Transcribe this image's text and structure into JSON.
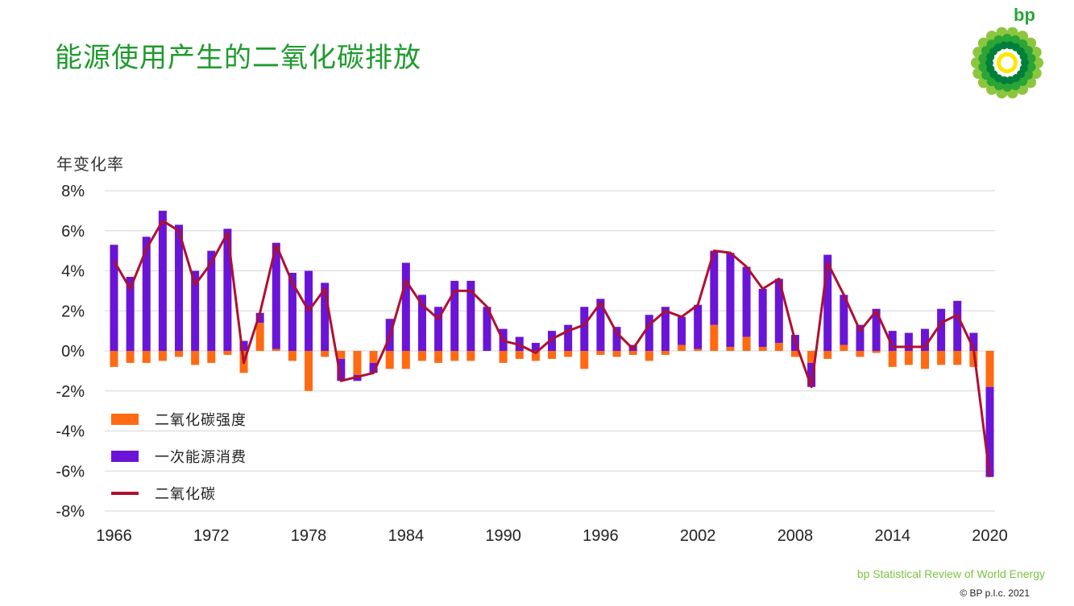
{
  "page": {
    "title": "能源使用产生的二氧化碳排放",
    "brand": "bp",
    "footer_source": "bp Statistical Review of World Energy",
    "footer_copyright": "© BP p.l.c. 2021"
  },
  "colors": {
    "title": "#1f9a2e",
    "intensity": "#ff6a13",
    "energy": "#6a14d8",
    "co2": "#b0102f",
    "grid": "#d6d6d6"
  },
  "chart_data": {
    "type": "bar",
    "subtype": "stacked bar with line overlay",
    "title": "",
    "ylabel": "年变化率",
    "ylim": [
      -8,
      8
    ],
    "yticks": [
      8,
      6,
      4,
      2,
      0,
      -2,
      -4,
      -6,
      -8
    ],
    "ytick_labels": [
      "8%",
      "6%",
      "4%",
      "2%",
      "0%",
      "-2%",
      "-4%",
      "-6%",
      "-8%"
    ],
    "xtick_labels": [
      "1966",
      "1972",
      "1978",
      "1984",
      "1990",
      "1996",
      "2002",
      "2008",
      "2014",
      "2020"
    ],
    "grid": true,
    "legend_position": "lower-left",
    "x": [
      1966,
      1967,
      1968,
      1969,
      1970,
      1971,
      1972,
      1973,
      1974,
      1975,
      1976,
      1977,
      1978,
      1979,
      1980,
      1981,
      1982,
      1983,
      1984,
      1985,
      1986,
      1987,
      1988,
      1989,
      1990,
      1991,
      1992,
      1993,
      1994,
      1995,
      1996,
      1997,
      1998,
      1999,
      2000,
      2001,
      2002,
      2003,
      2004,
      2005,
      2006,
      2007,
      2008,
      2009,
      2010,
      2011,
      2012,
      2013,
      2014,
      2015,
      2016,
      2017,
      2018,
      2019,
      2020
    ],
    "series": [
      {
        "name": "二氧化碳强度",
        "kind": "bar",
        "values": [
          -0.8,
          -0.6,
          -0.6,
          -0.5,
          -0.3,
          -0.7,
          -0.6,
          -0.2,
          -1.1,
          1.4,
          0.1,
          -0.5,
          -2.0,
          -0.3,
          -0.4,
          -1.2,
          -0.6,
          -0.9,
          -0.9,
          -0.5,
          -0.6,
          -0.5,
          -0.5,
          0.0,
          -0.6,
          -0.4,
          -0.5,
          -0.4,
          -0.3,
          -0.9,
          -0.2,
          -0.3,
          -0.2,
          -0.5,
          -0.2,
          0.3,
          0.1,
          1.3,
          0.2,
          0.7,
          0.2,
          0.4,
          -0.3,
          -0.6,
          -0.4,
          0.3,
          -0.3,
          -0.1,
          -0.8,
          -0.7,
          -0.9,
          -0.7,
          -0.7,
          -0.8,
          -1.8
        ]
      },
      {
        "name": "一次能源消费",
        "kind": "bar",
        "values": [
          5.3,
          3.7,
          5.7,
          7.0,
          6.3,
          4.0,
          5.0,
          6.1,
          0.5,
          0.5,
          5.3,
          3.9,
          4.0,
          3.4,
          -1.1,
          -0.3,
          -0.5,
          1.6,
          4.4,
          2.8,
          2.2,
          3.5,
          3.5,
          2.2,
          1.1,
          0.7,
          0.4,
          1.0,
          1.3,
          2.2,
          2.6,
          1.2,
          0.3,
          1.8,
          2.2,
          1.4,
          2.2,
          3.7,
          4.7,
          3.5,
          2.9,
          3.2,
          0.8,
          -1.2,
          4.8,
          2.5,
          1.3,
          2.1,
          1.0,
          0.9,
          1.1,
          2.1,
          2.5,
          0.9,
          -4.5
        ]
      },
      {
        "name": "二氧化碳",
        "kind": "line",
        "values": [
          4.5,
          3.1,
          5.1,
          6.5,
          6.0,
          3.3,
          4.4,
          5.9,
          -0.6,
          1.9,
          5.3,
          3.4,
          2.0,
          3.1,
          -1.5,
          -1.3,
          -1.1,
          0.7,
          3.5,
          2.3,
          1.6,
          3.0,
          3.0,
          2.2,
          0.5,
          0.3,
          -0.1,
          0.6,
          1.0,
          1.3,
          2.4,
          0.9,
          0.1,
          1.3,
          2.0,
          1.7,
          2.3,
          5.0,
          4.9,
          4.2,
          3.1,
          3.6,
          0.5,
          -1.8,
          4.4,
          2.8,
          1.0,
          2.0,
          0.2,
          0.2,
          0.2,
          1.4,
          1.8,
          0.1,
          -6.3
        ]
      }
    ]
  }
}
